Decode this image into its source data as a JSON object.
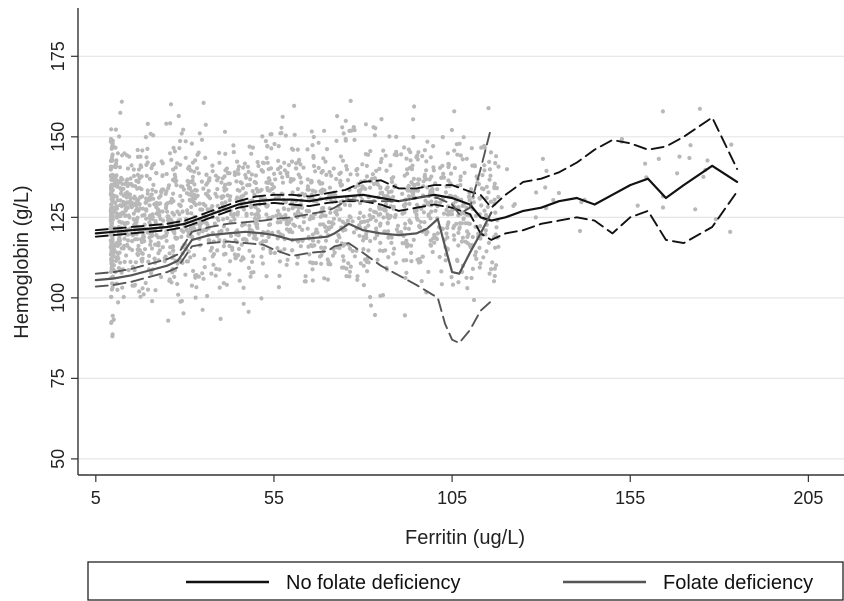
{
  "chart_data": {
    "type": "scatter",
    "title": "",
    "xlabel": "Ferritin (ug/L)",
    "ylabel": "Hemoglobin (g/L)",
    "x_ticks": [
      5,
      55,
      105,
      155,
      205
    ],
    "y_ticks": [
      50,
      75,
      100,
      125,
      150,
      175
    ],
    "xlim": [
      0,
      215
    ],
    "ylim": [
      45,
      190
    ],
    "grid": "horizontal",
    "legend": {
      "position": "bottom",
      "entries": [
        "No folate deficiency",
        "Folate deficiency"
      ]
    },
    "colors": {
      "points": "#b8b8b8",
      "no_folate": "#111111",
      "folate": "#555555",
      "grid": "#e6e6e6",
      "axis": "#333333"
    },
    "series": [
      {
        "name": "No folate deficiency",
        "style": "solid",
        "fit": [
          [
            5,
            120
          ],
          [
            10,
            120.5
          ],
          [
            15,
            121
          ],
          [
            20,
            121.5
          ],
          [
            25,
            122
          ],
          [
            30,
            123
          ],
          [
            35,
            125
          ],
          [
            40,
            127
          ],
          [
            45,
            129
          ],
          [
            50,
            130
          ],
          [
            55,
            130.5
          ],
          [
            60,
            130.5
          ],
          [
            65,
            130
          ],
          [
            70,
            131
          ],
          [
            75,
            131.5
          ],
          [
            80,
            132
          ],
          [
            85,
            131
          ],
          [
            90,
            130
          ],
          [
            95,
            131
          ],
          [
            100,
            132
          ],
          [
            105,
            131
          ],
          [
            110,
            129
          ],
          [
            113,
            125
          ],
          [
            116,
            124
          ],
          [
            120,
            125
          ],
          [
            125,
            127
          ],
          [
            130,
            128
          ],
          [
            135,
            130
          ],
          [
            140,
            131
          ],
          [
            145,
            129
          ],
          [
            150,
            132
          ],
          [
            155,
            135
          ],
          [
            160,
            137
          ],
          [
            165,
            131
          ],
          [
            170,
            135
          ],
          [
            178,
            141
          ],
          [
            185,
            136
          ]
        ],
        "ci_upper": [
          [
            5,
            121
          ],
          [
            10,
            121.5
          ],
          [
            15,
            122
          ],
          [
            20,
            122.5
          ],
          [
            25,
            123
          ],
          [
            30,
            124
          ],
          [
            35,
            126
          ],
          [
            40,
            128
          ],
          [
            45,
            130
          ],
          [
            50,
            131.5
          ],
          [
            55,
            132
          ],
          [
            60,
            132
          ],
          [
            65,
            131.5
          ],
          [
            70,
            132.5
          ],
          [
            75,
            133.5
          ],
          [
            80,
            136
          ],
          [
            85,
            136.5
          ],
          [
            90,
            134
          ],
          [
            95,
            134
          ],
          [
            100,
            135
          ],
          [
            105,
            135
          ],
          [
            110,
            133
          ],
          [
            113,
            132
          ],
          [
            116,
            128
          ],
          [
            120,
            132
          ],
          [
            125,
            136
          ],
          [
            130,
            137
          ],
          [
            135,
            139
          ],
          [
            140,
            142
          ],
          [
            145,
            146
          ],
          [
            150,
            149
          ],
          [
            155,
            148
          ],
          [
            160,
            146
          ],
          [
            165,
            147
          ],
          [
            170,
            150
          ],
          [
            178,
            156
          ],
          [
            185,
            140
          ]
        ],
        "ci_lower": [
          [
            5,
            119
          ],
          [
            10,
            119.5
          ],
          [
            15,
            120
          ],
          [
            20,
            120.5
          ],
          [
            25,
            121
          ],
          [
            30,
            122
          ],
          [
            35,
            124
          ],
          [
            40,
            126
          ],
          [
            45,
            128
          ],
          [
            50,
            129
          ],
          [
            55,
            129.5
          ],
          [
            60,
            129
          ],
          [
            65,
            128.5
          ],
          [
            70,
            129.5
          ],
          [
            75,
            130
          ],
          [
            80,
            130
          ],
          [
            85,
            129
          ],
          [
            90,
            127
          ],
          [
            95,
            128
          ],
          [
            100,
            129
          ],
          [
            105,
            128
          ],
          [
            110,
            126
          ],
          [
            113,
            120
          ],
          [
            116,
            118
          ],
          [
            120,
            120
          ],
          [
            125,
            121
          ],
          [
            130,
            123
          ],
          [
            135,
            124
          ],
          [
            140,
            125
          ],
          [
            145,
            124
          ],
          [
            150,
            120
          ],
          [
            155,
            125
          ],
          [
            160,
            127
          ],
          [
            165,
            118
          ],
          [
            170,
            117
          ],
          [
            178,
            122
          ],
          [
            185,
            133
          ]
        ]
      },
      {
        "name": "Folate deficiency",
        "style": "solid",
        "fit": [
          [
            5,
            105.5
          ],
          [
            10,
            106
          ],
          [
            15,
            107
          ],
          [
            20,
            108.5
          ],
          [
            25,
            110
          ],
          [
            28,
            111.5
          ],
          [
            32,
            118
          ],
          [
            37,
            119.5
          ],
          [
            42,
            120
          ],
          [
            47,
            120.5
          ],
          [
            52,
            120
          ],
          [
            55,
            119.5
          ],
          [
            60,
            118
          ],
          [
            65,
            118.5
          ],
          [
            70,
            119
          ],
          [
            72,
            120
          ],
          [
            76,
            123
          ],
          [
            80,
            121
          ],
          [
            85,
            120
          ],
          [
            90,
            119.5
          ],
          [
            95,
            120
          ],
          [
            98,
            121.5
          ],
          [
            101,
            124.5
          ],
          [
            103,
            116
          ],
          [
            105,
            108
          ],
          [
            107,
            107.5
          ],
          [
            110,
            114
          ],
          [
            113,
            120
          ],
          [
            116,
            126.5
          ]
        ],
        "ci_upper": [
          [
            5,
            107.5
          ],
          [
            10,
            108
          ],
          [
            15,
            109
          ],
          [
            20,
            110.5
          ],
          [
            25,
            112
          ],
          [
            28,
            113.5
          ],
          [
            32,
            120.5
          ],
          [
            37,
            122
          ],
          [
            42,
            123
          ],
          [
            47,
            123.5
          ],
          [
            52,
            124
          ],
          [
            55,
            124.5
          ],
          [
            60,
            125
          ],
          [
            65,
            126
          ],
          [
            70,
            127
          ],
          [
            72,
            128
          ],
          [
            76,
            130.5
          ],
          [
            80,
            130
          ],
          [
            85,
            130
          ],
          [
            90,
            130
          ],
          [
            95,
            131
          ],
          [
            98,
            131.5
          ],
          [
            101,
            131
          ],
          [
            103,
            130
          ],
          [
            105,
            129
          ],
          [
            107,
            126
          ],
          [
            110,
            128
          ],
          [
            113,
            140
          ],
          [
            116,
            153
          ]
        ],
        "ci_lower": [
          [
            5,
            103.5
          ],
          [
            10,
            104
          ],
          [
            15,
            105
          ],
          [
            20,
            106.5
          ],
          [
            25,
            108
          ],
          [
            28,
            109.5
          ],
          [
            32,
            116
          ],
          [
            37,
            117
          ],
          [
            42,
            117.5
          ],
          [
            47,
            117
          ],
          [
            52,
            116.5
          ],
          [
            55,
            115
          ],
          [
            60,
            113
          ],
          [
            65,
            114
          ],
          [
            70,
            114.5
          ],
          [
            72,
            116
          ],
          [
            76,
            117
          ],
          [
            80,
            114
          ],
          [
            85,
            110
          ],
          [
            90,
            107
          ],
          [
            95,
            104
          ],
          [
            98,
            102
          ],
          [
            101,
            100
          ],
          [
            103,
            92
          ],
          [
            105,
            87
          ],
          [
            107,
            86
          ],
          [
            110,
            90
          ],
          [
            113,
            96
          ],
          [
            116,
            99
          ]
        ]
      }
    ]
  }
}
